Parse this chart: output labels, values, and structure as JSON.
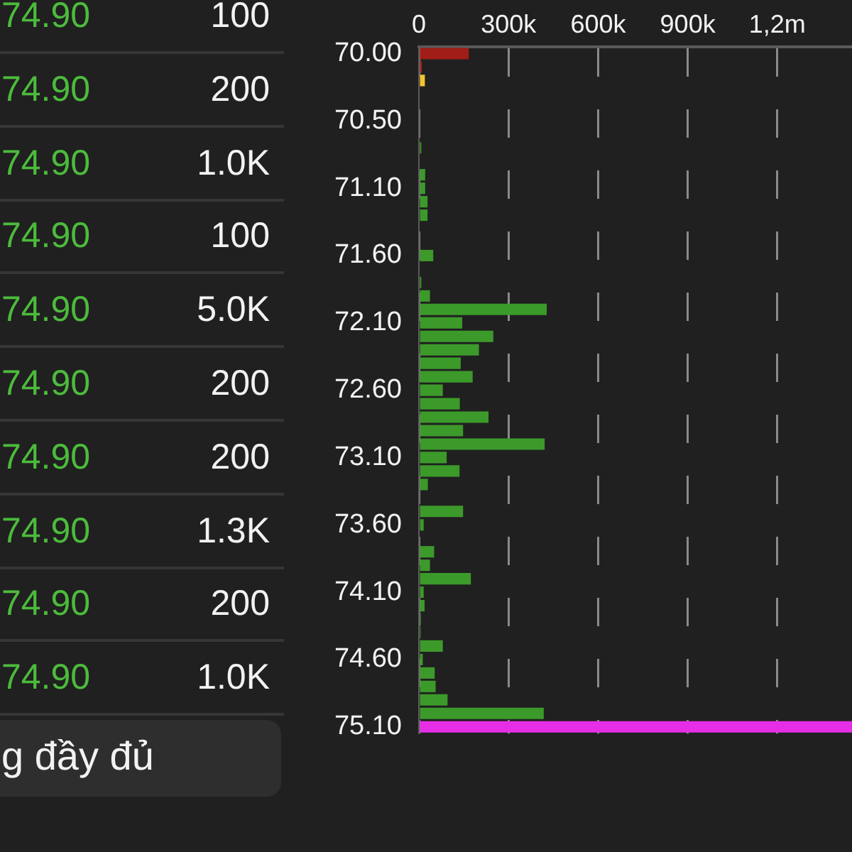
{
  "chart_data": [
    {
      "type": "other",
      "annotations": [
        "74.90",
        "100",
        "74.90",
        "200",
        "74.90",
        "1.0K",
        "74.90",
        "100",
        "74.90",
        "5.0K",
        "74.90",
        "200",
        "74.90",
        "200",
        "74.90",
        "1.3K",
        "74.90",
        "200",
        "74.90",
        "1.0K",
        "g đầy đủ"
      ]
    },
    {
      "type": "bar",
      "orientation": "horizontal",
      "categories": [
        "70.00",
        null,
        null,
        null,
        null,
        "70.50",
        null,
        null,
        null,
        null,
        "71.10",
        null,
        null,
        null,
        null,
        "71.60",
        null,
        null,
        null,
        null,
        "72.10",
        null,
        null,
        null,
        null,
        "72.60",
        null,
        null,
        null,
        null,
        "73.10",
        null,
        null,
        null,
        null,
        "73.60",
        null,
        null,
        null,
        null,
        "74.10",
        null,
        null,
        null,
        null,
        "74.60",
        null,
        null,
        null,
        null,
        "75.10"
      ],
      "values": [
        167000,
        10000,
        20000,
        0,
        0,
        0,
        0,
        8000,
        0,
        21000,
        21000,
        29000,
        29000,
        0,
        0,
        48000,
        0,
        8000,
        37000,
        428000,
        145000,
        249000,
        201000,
        140000,
        180000,
        80000,
        137000,
        233000,
        148000,
        421000,
        93000,
        136000,
        30000,
        0,
        148000,
        16000,
        0,
        51000,
        37000,
        174000,
        16000,
        19000,
        6000,
        6000,
        80000,
        13000,
        53000,
        56000,
        96000,
        418000,
        1450000
      ],
      "colors": [
        "#a11d17",
        "#a11d17",
        "#f2c431",
        "#3c9a2a",
        "#3c9a2a",
        "#3c9a2a",
        "#3c9a2a",
        "#3c9a2a",
        "#3c9a2a",
        "#3c9a2a",
        "#3c9a2a",
        "#3c9a2a",
        "#3c9a2a",
        "#3c9a2a",
        "#3c9a2a",
        "#3c9a2a",
        "#3c9a2a",
        "#3c9a2a",
        "#3c9a2a",
        "#3c9a2a",
        "#3c9a2a",
        "#3c9a2a",
        "#3c9a2a",
        "#3c9a2a",
        "#3c9a2a",
        "#3c9a2a",
        "#3c9a2a",
        "#3c9a2a",
        "#3c9a2a",
        "#3c9a2a",
        "#3c9a2a",
        "#3c9a2a",
        "#3c9a2a",
        "#3c9a2a",
        "#3c9a2a",
        "#3c9a2a",
        "#3c9a2a",
        "#3c9a2a",
        "#3c9a2a",
        "#3c9a2a",
        "#3c9a2a",
        "#3c9a2a",
        "#3c9a2a",
        "#3c9a2a",
        "#3c9a2a",
        "#3c9a2a",
        "#3c9a2a",
        "#3c9a2a",
        "#3c9a2a",
        "#3c9a2a",
        "#e62ee6"
      ],
      "xlim": [
        0,
        1450000
      ],
      "xticks": [
        0,
        {
          "value": 300000,
          "label": "300k"
        },
        {
          "value": 600000,
          "label": "600k"
        },
        {
          "value": 900000,
          "label": "900k"
        },
        {
          "value": 1200000,
          "label": "1,2m"
        }
      ],
      "grid": "x",
      "legend": false
    }
  ]
}
